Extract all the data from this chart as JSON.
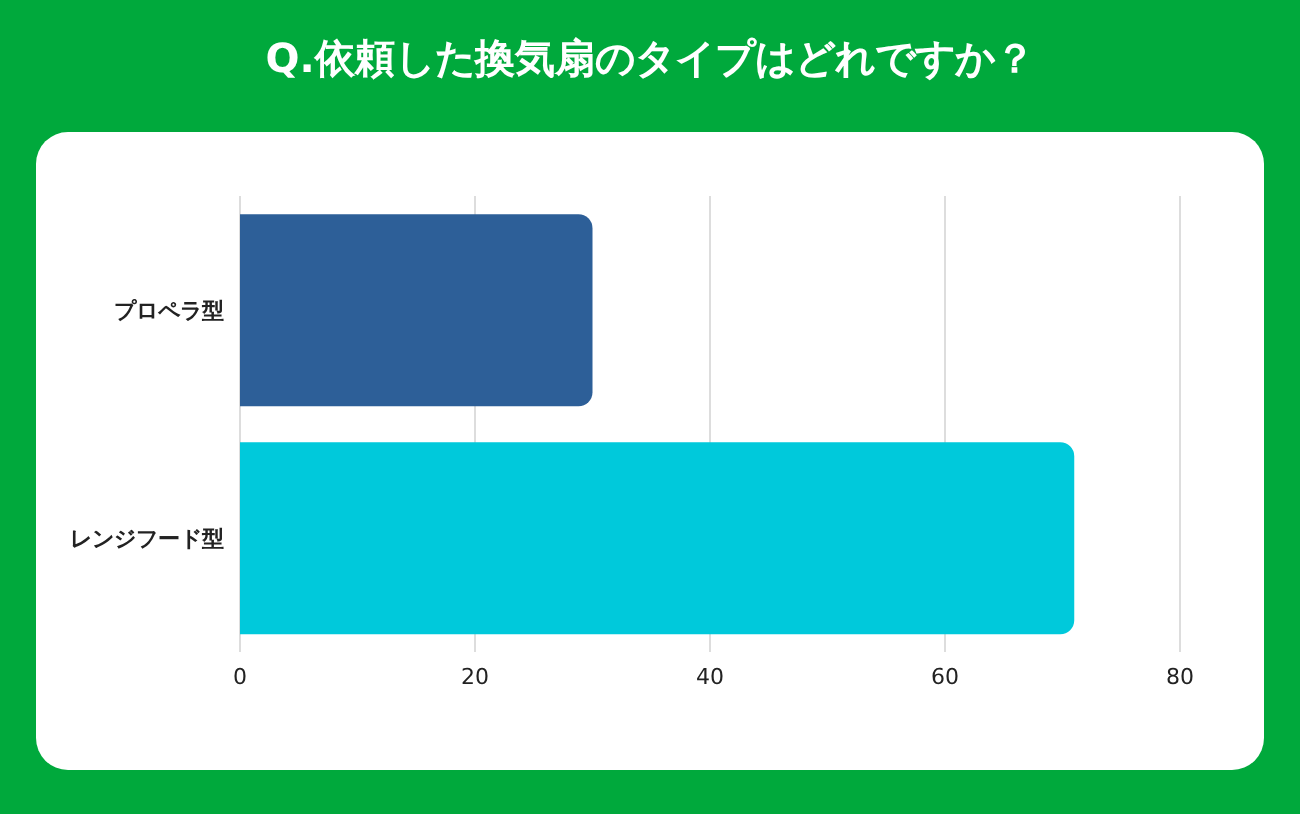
{
  "chart_data": {
    "type": "bar",
    "orientation": "horizontal",
    "title": "Q.依頼した換気扇のタイプはどれですか？",
    "categories": [
      "プロペラ型",
      "レンジフード型"
    ],
    "values": [
      30,
      71
    ],
    "colors": [
      "#2d5f98",
      "#00c9db"
    ],
    "xlim": [
      0,
      80
    ],
    "xticks": [
      0,
      20,
      40,
      60,
      80
    ],
    "grid": "x",
    "legend": false
  }
}
